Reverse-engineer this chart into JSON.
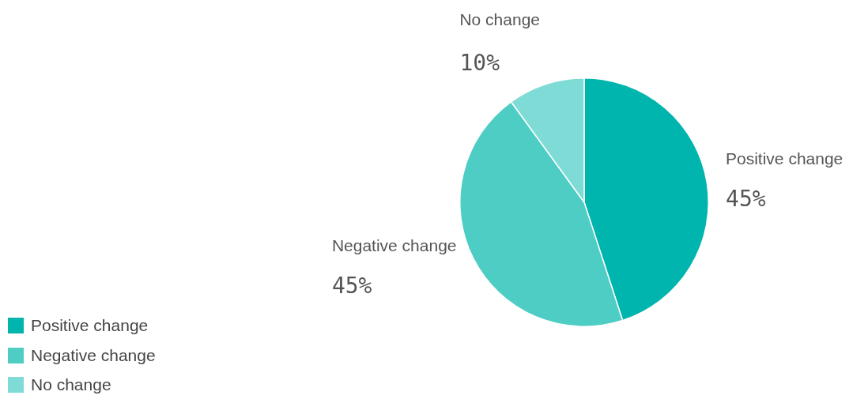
{
  "chart_data": {
    "type": "pie",
    "categories": [
      "Positive change",
      "Negative change",
      "No change"
    ],
    "values": [
      45,
      45,
      10
    ],
    "colors": [
      "#00b5ad",
      "#4ecdc4",
      "#7fdbd6"
    ],
    "value_labels": [
      "45%",
      "45%",
      "10%"
    ],
    "legend": "bottom left"
  }
}
